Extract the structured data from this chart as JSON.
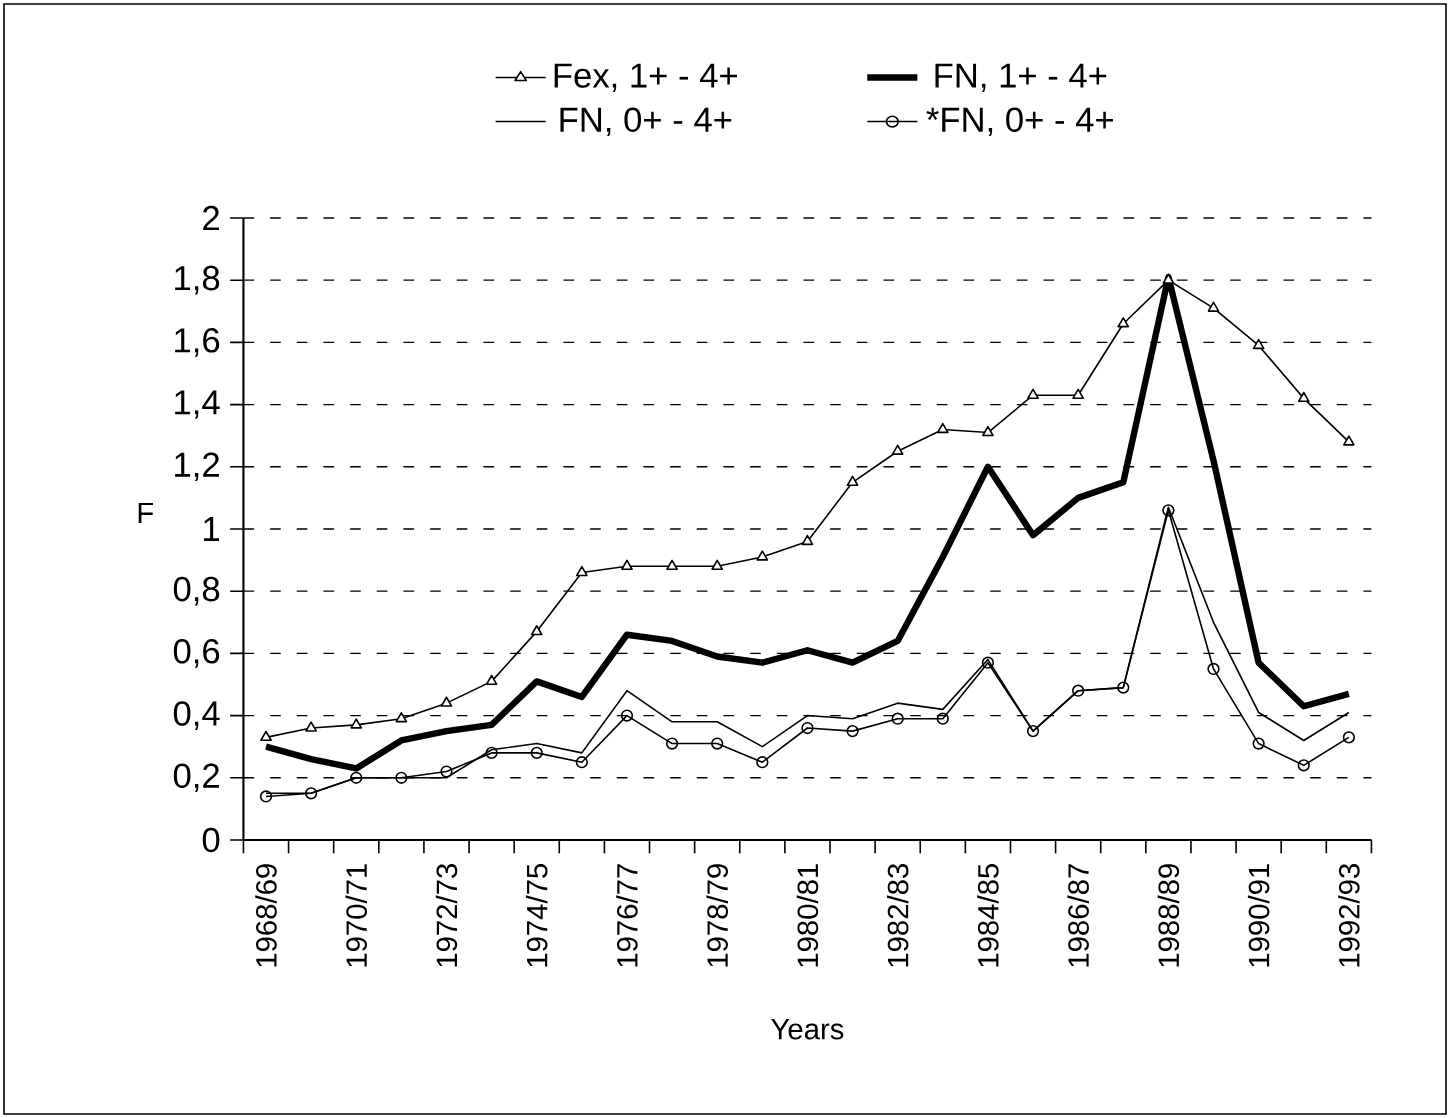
{
  "chart_data": {
    "type": "line",
    "xlabel": "Years",
    "ylabel": "F",
    "categories": [
      "1968/69",
      null,
      "1970/71",
      null,
      "1972/73",
      null,
      "1974/75",
      null,
      "1976/77",
      null,
      "1978/79",
      null,
      "1980/81",
      null,
      "1982/83",
      null,
      "1984/85",
      null,
      "1986/87",
      null,
      "1988/89",
      null,
      "1990/91",
      null,
      "1992/93"
    ],
    "series": [
      {
        "name": "Fex, 1+ - 4+",
        "color": "#000000",
        "marker": "triangle",
        "values": [
          0.33,
          0.36,
          0.37,
          0.39,
          0.44,
          0.51,
          0.67,
          0.86,
          0.88,
          0.88,
          0.88,
          0.91,
          0.96,
          1.15,
          1.25,
          1.32,
          1.31,
          1.43,
          1.43,
          1.66,
          1.8,
          1.71,
          1.59,
          1.42,
          1.28
        ]
      },
      {
        "name": "FN, 1+ - 4+",
        "color": "#000000",
        "marker": "none",
        "values": [
          0.3,
          0.26,
          0.23,
          0.32,
          0.35,
          0.37,
          0.51,
          0.46,
          0.66,
          0.64,
          0.59,
          0.57,
          0.61,
          0.57,
          0.64,
          0.91,
          1.2,
          0.98,
          1.1,
          1.15,
          1.81,
          1.22,
          0.57,
          0.43,
          0.47
        ]
      },
      {
        "name": "FN, 0+ - 4+",
        "color": "#000000",
        "marker": "none",
        "values": [
          0.15,
          0.15,
          0.2,
          0.2,
          0.2,
          0.29,
          0.31,
          0.28,
          0.48,
          0.38,
          0.38,
          0.3,
          0.4,
          0.39,
          0.44,
          0.42,
          0.58,
          0.35,
          0.48,
          0.49,
          1.07,
          0.7,
          0.41,
          0.32,
          0.41
        ]
      },
      {
        "name": "*FN, 0+ - 4+",
        "color": "#000000",
        "marker": "circle",
        "values": [
          0.14,
          0.15,
          0.2,
          0.2,
          0.22,
          0.28,
          0.28,
          0.25,
          0.4,
          0.31,
          0.31,
          0.25,
          0.36,
          0.35,
          0.39,
          0.39,
          0.57,
          0.35,
          0.48,
          0.49,
          1.06,
          0.55,
          0.31,
          0.24,
          0.33
        ]
      }
    ],
    "ylim": [
      0,
      2
    ],
    "yticks": [
      0,
      {
        "value": 0.2,
        "label": "0,2"
      },
      {
        "value": 0.4,
        "label": "0,4"
      },
      {
        "value": 0.6,
        "label": "0,6"
      },
      {
        "value": 0.8,
        "label": "0,8"
      },
      1,
      {
        "value": 1.2,
        "label": "1,2"
      },
      {
        "value": 1.4,
        "label": "1,4"
      },
      {
        "value": 1.6,
        "label": "1,6"
      },
      {
        "value": 1.8,
        "label": "1,8"
      },
      2
    ],
    "grid": "y",
    "legend": "top",
    "line_style": "solid"
  }
}
